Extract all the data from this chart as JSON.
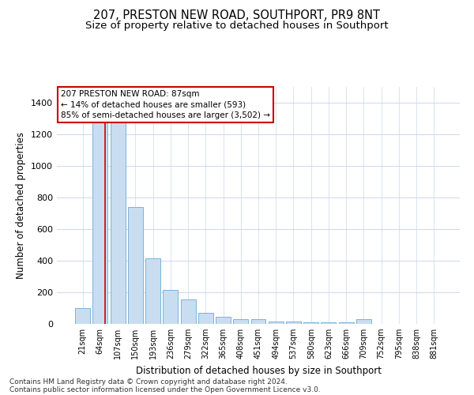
{
  "title": "207, PRESTON NEW ROAD, SOUTHPORT, PR9 8NT",
  "subtitle": "Size of property relative to detached houses in Southport",
  "xlabel": "Distribution of detached houses by size in Southport",
  "ylabel": "Number of detached properties",
  "categories": [
    "21sqm",
    "64sqm",
    "107sqm",
    "150sqm",
    "193sqm",
    "236sqm",
    "279sqm",
    "322sqm",
    "365sqm",
    "408sqm",
    "451sqm",
    "494sqm",
    "537sqm",
    "580sqm",
    "623sqm",
    "666sqm",
    "709sqm",
    "752sqm",
    "795sqm",
    "838sqm",
    "881sqm"
  ],
  "values": [
    100,
    1350,
    1350,
    740,
    415,
    215,
    155,
    70,
    45,
    30,
    30,
    15,
    15,
    12,
    10,
    10,
    30,
    0,
    0,
    0,
    0
  ],
  "bar_color": "#c9ddf0",
  "bar_edge_color": "#6aaad4",
  "redline_x": 1.27,
  "ylim": [
    0,
    1500
  ],
  "yticks": [
    0,
    200,
    400,
    600,
    800,
    1000,
    1200,
    1400
  ],
  "annotation_text": "207 PRESTON NEW ROAD: 87sqm\n← 14% of detached houses are smaller (593)\n85% of semi-detached houses are larger (3,502) →",
  "annotation_box_color": "#ffffff",
  "annotation_box_edge": "#cc0000",
  "footer1": "Contains HM Land Registry data © Crown copyright and database right 2024.",
  "footer2": "Contains public sector information licensed under the Open Government Licence v3.0.",
  "background_color": "#ffffff",
  "grid_color": "#ccd8ec",
  "title_fontsize": 10.5,
  "subtitle_fontsize": 9.5,
  "axis_label_fontsize": 8.5,
  "tick_fontsize": 7,
  "annotation_fontsize": 7.5,
  "footer_fontsize": 6.5
}
